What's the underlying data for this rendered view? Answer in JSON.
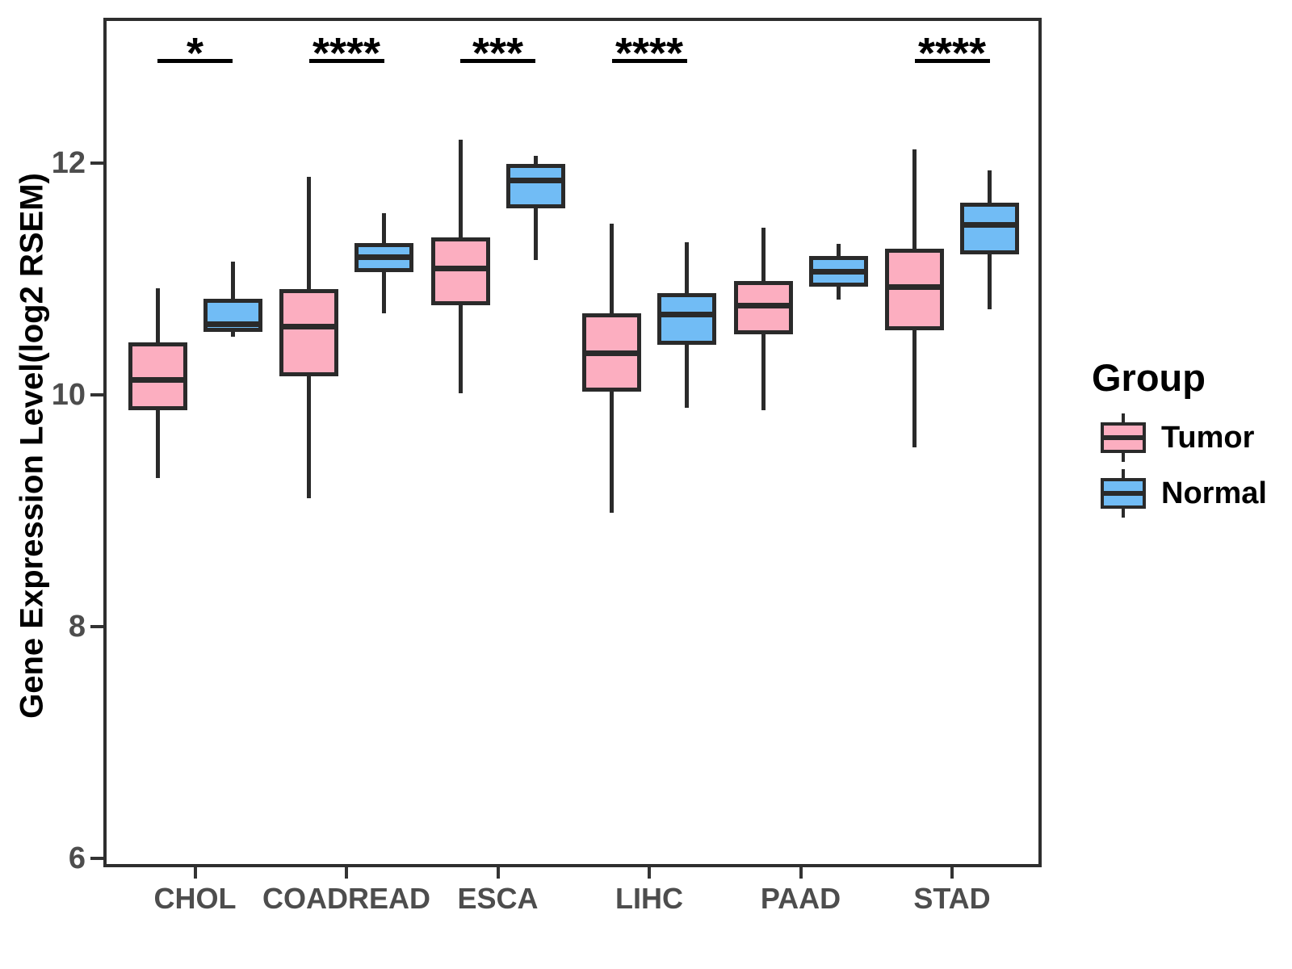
{
  "y_axis": {
    "label": "Gene Expression Level(log2 RSEM)",
    "tick_labels": [
      "12",
      "10",
      "8",
      "6"
    ],
    "tick_values": [
      12,
      10,
      8,
      6
    ]
  },
  "x_axis": {
    "tick_labels": [
      "CHOL",
      "COADREAD",
      "ESCA",
      "LIHC",
      "PAAD",
      "STAD"
    ]
  },
  "legend": {
    "title": "Group",
    "entries": [
      {
        "label": "Tumor",
        "color": "#FCAEC0"
      },
      {
        "label": "Normal",
        "color": "#71BCF5"
      }
    ]
  },
  "style": {
    "tumor_fill": "#FCAEC0",
    "normal_fill": "#71BCF5",
    "line_color": "#2a2a2a",
    "axis_text_color": "#4d4d4d"
  },
  "chart_data": {
    "type": "boxplot",
    "title": "",
    "ylabel": "Gene Expression Level(log2 RSEM)",
    "categories": [
      "CHOL",
      "COADREAD",
      "ESCA",
      "LIHC",
      "PAAD",
      "STAD"
    ],
    "y_ticks": [
      6,
      8,
      10,
      12
    ],
    "ylim": [
      5.92,
      13.25
    ],
    "grid": false,
    "legend_position": "right",
    "series": [
      {
        "name": "Tumor",
        "fill": "#FCAEC0",
        "boxes": [
          {
            "category": "CHOL",
            "whisker_low": 9.28,
            "q1": 9.87,
            "median": 10.13,
            "q3": 10.45,
            "whisker_high": 10.92
          },
          {
            "category": "COADREAD",
            "whisker_low": 9.11,
            "q1": 10.16,
            "median": 10.59,
            "q3": 10.91,
            "whisker_high": 11.88
          },
          {
            "category": "ESCA",
            "whisker_low": 10.01,
            "q1": 10.77,
            "median": 11.09,
            "q3": 11.36,
            "whisker_high": 12.2
          },
          {
            "category": "LIHC",
            "whisker_low": 8.98,
            "q1": 10.03,
            "median": 10.36,
            "q3": 10.7,
            "whisker_high": 11.48
          },
          {
            "category": "PAAD",
            "whisker_low": 9.87,
            "q1": 10.52,
            "median": 10.77,
            "q3": 10.98,
            "whisker_high": 11.44
          },
          {
            "category": "STAD",
            "whisker_low": 9.55,
            "q1": 10.56,
            "median": 10.93,
            "q3": 11.26,
            "whisker_high": 12.12
          }
        ]
      },
      {
        "name": "Normal",
        "fill": "#71BCF5",
        "boxes": [
          {
            "category": "CHOL",
            "whisker_low": 10.5,
            "q1": 10.54,
            "median": 10.61,
            "q3": 10.83,
            "whisker_high": 11.15
          },
          {
            "category": "COADREAD",
            "whisker_low": 10.7,
            "q1": 11.06,
            "median": 11.19,
            "q3": 11.31,
            "whisker_high": 11.57
          },
          {
            "category": "ESCA",
            "whisker_low": 11.16,
            "q1": 11.61,
            "median": 11.85,
            "q3": 11.99,
            "whisker_high": 12.06
          },
          {
            "category": "LIHC",
            "whisker_low": 9.89,
            "q1": 10.43,
            "median": 10.69,
            "q3": 10.88,
            "whisker_high": 11.32
          },
          {
            "category": "PAAD",
            "whisker_low": 10.82,
            "q1": 10.93,
            "median": 11.06,
            "q3": 11.2,
            "whisker_high": 11.3
          },
          {
            "category": "STAD",
            "whisker_low": 10.74,
            "q1": 11.21,
            "median": 11.47,
            "q3": 11.66,
            "whisker_high": 11.94
          }
        ]
      }
    ],
    "significance": [
      {
        "category": "CHOL",
        "label": "*"
      },
      {
        "category": "COADREAD",
        "label": "****"
      },
      {
        "category": "ESCA",
        "label": "***"
      },
      {
        "category": "LIHC",
        "label": "****"
      },
      {
        "category": "PAAD",
        "label": ""
      },
      {
        "category": "STAD",
        "label": "****"
      }
    ]
  }
}
